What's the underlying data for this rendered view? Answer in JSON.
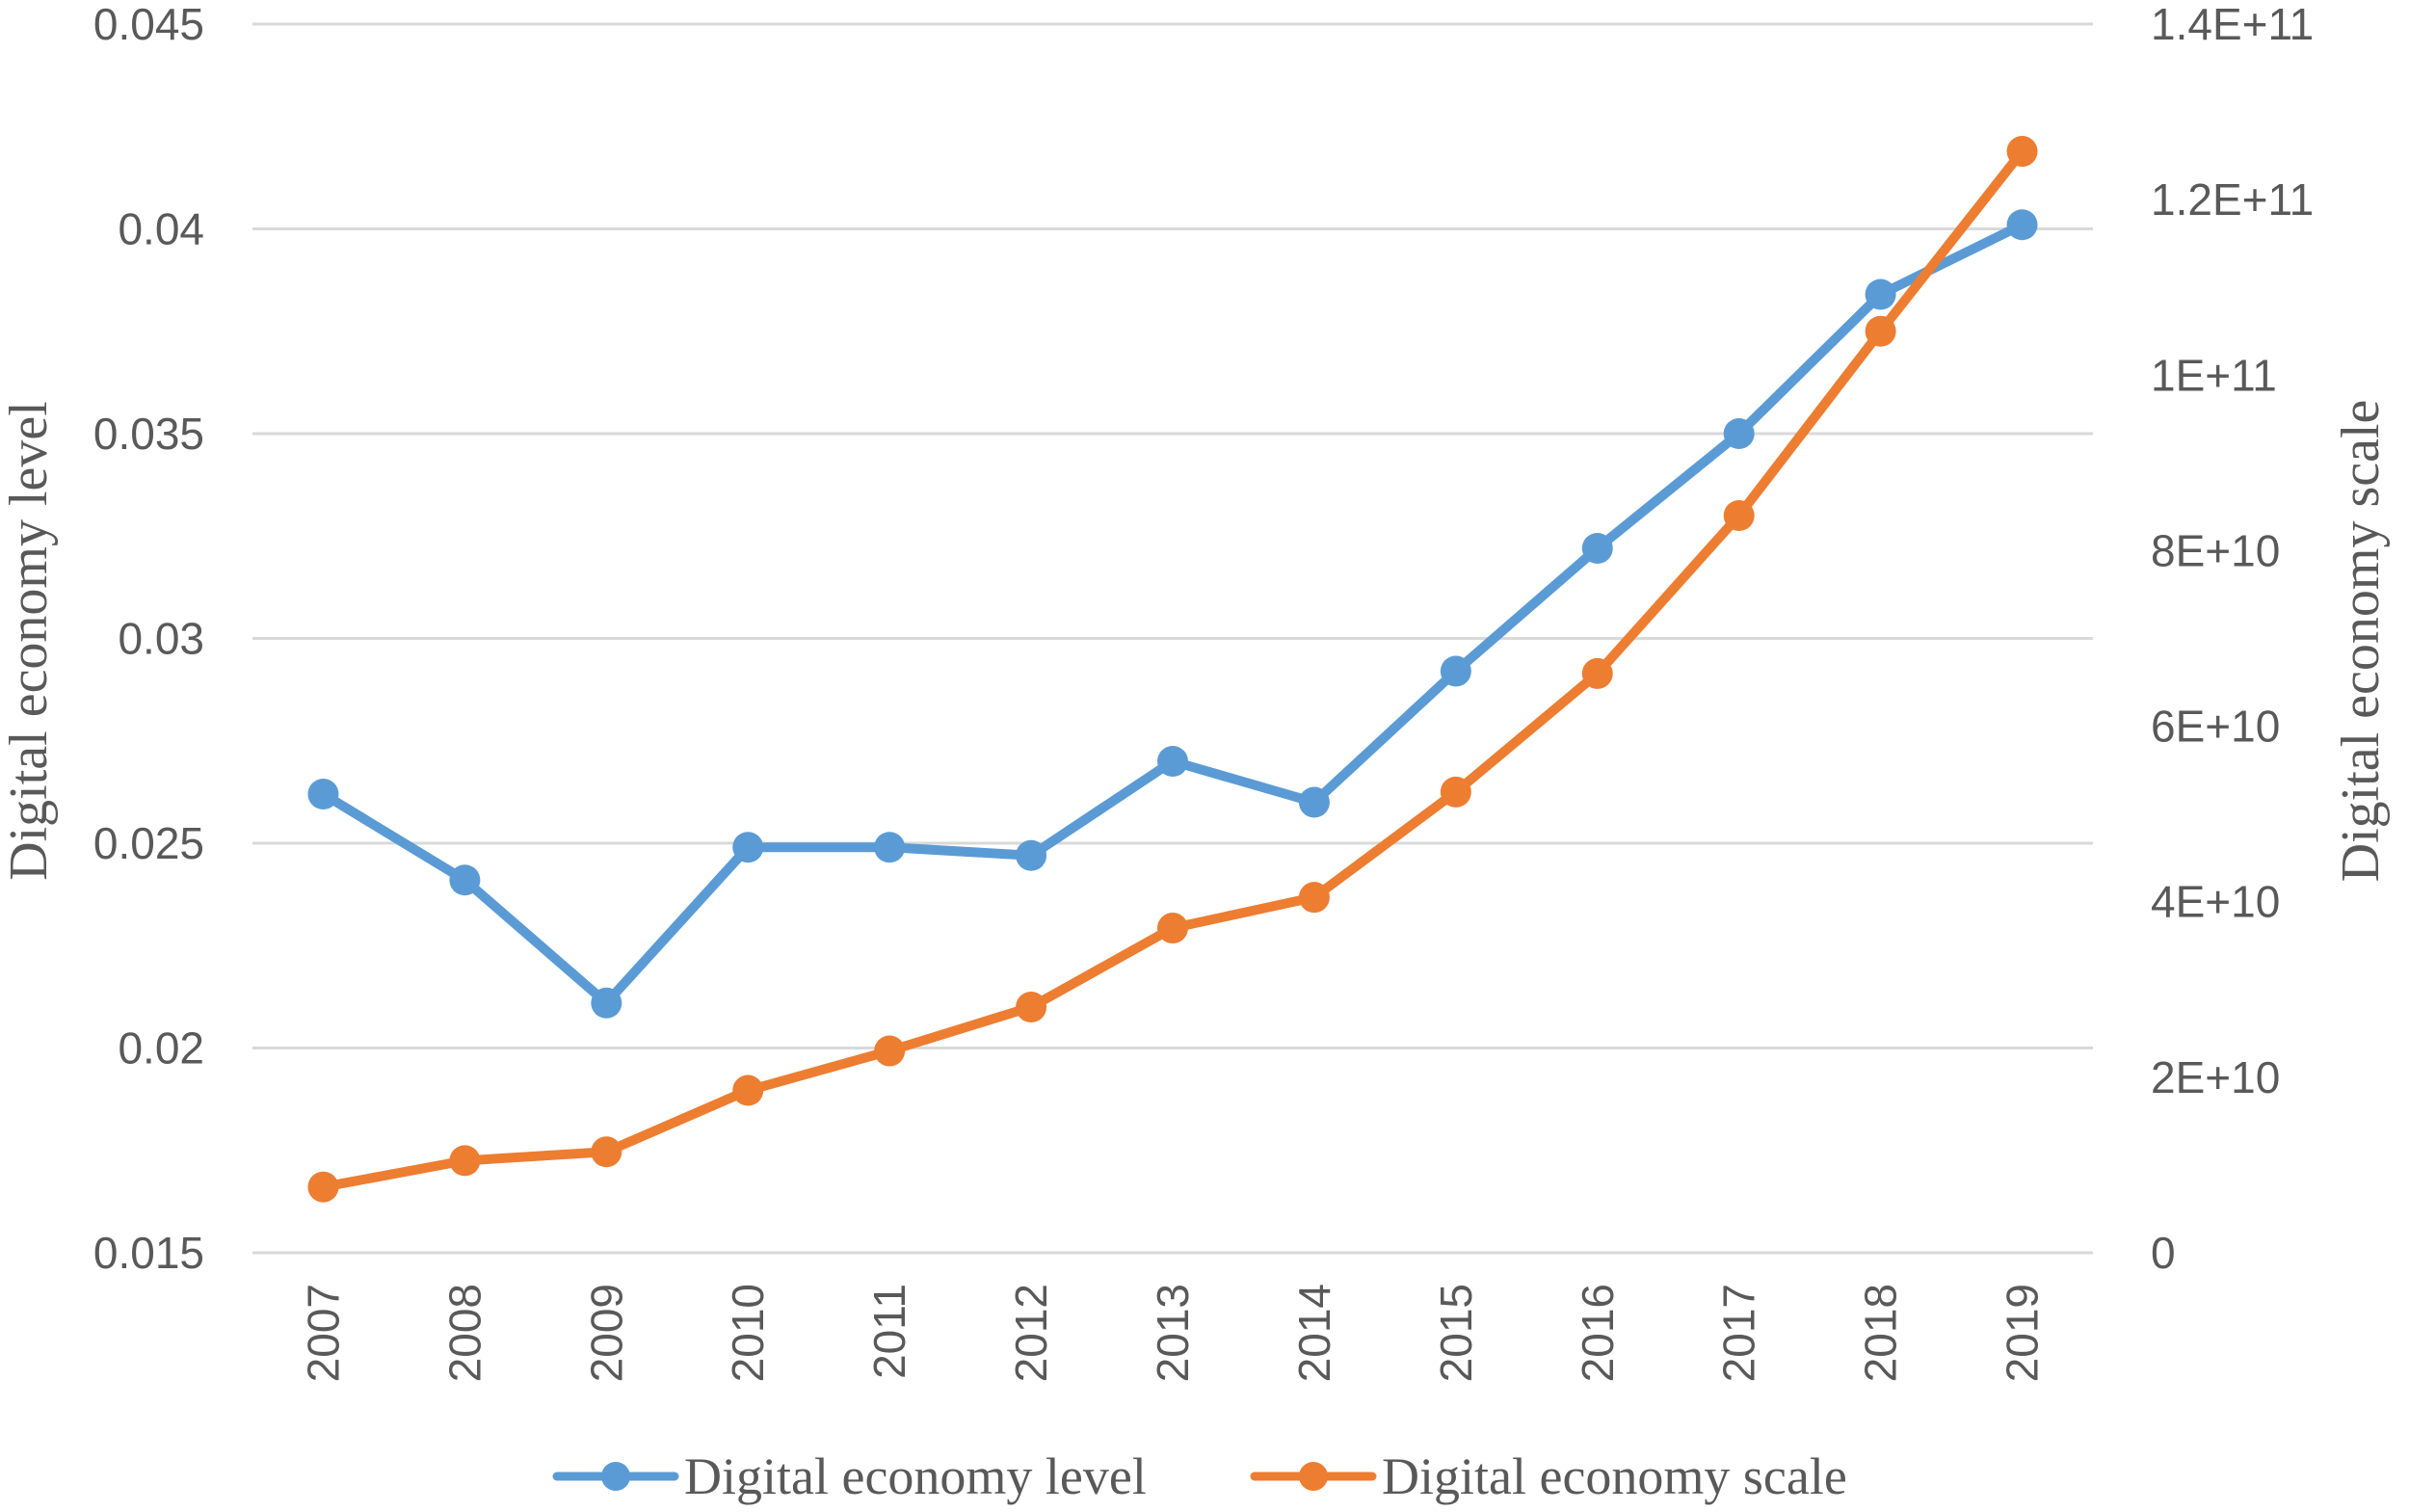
{
  "chart_data": {
    "type": "line",
    "categories": [
      "2007",
      "2008",
      "2009",
      "2010",
      "2011",
      "2012",
      "2013",
      "2014",
      "2015",
      "2016",
      "2017",
      "2018",
      "2019"
    ],
    "series": [
      {
        "name": "Digital economy level",
        "axis": "left",
        "color": "#5b9bd5",
        "values": [
          0.0262,
          0.0241,
          0.0211,
          0.0249,
          0.0249,
          0.0247,
          0.027,
          0.026,
          0.0292,
          0.0322,
          0.035,
          0.0384,
          0.0401
        ]
      },
      {
        "name": "Digital economy scale",
        "axis": "right",
        "color": "#ed7d31",
        "values": [
          7500000000,
          10500000000,
          11500000000,
          18500000000,
          23000000000,
          28000000000,
          37000000000,
          40500000000,
          52500000000,
          66000000000,
          84000000000,
          105000000000,
          125500000000
        ]
      }
    ],
    "y_left": {
      "label": "Digital economy level",
      "ylim": [
        0.015,
        0.045
      ],
      "ticks": [
        "0.015",
        "0.02",
        "0.025",
        "0.03",
        "0.035",
        "0.04",
        "0.045"
      ]
    },
    "y_right": {
      "label": "Digital economy scale",
      "ylim": [
        0,
        140000000000
      ],
      "ticks": [
        "0",
        "2E+10",
        "4E+10",
        "6E+10",
        "8E+10",
        "1E+11",
        "1.2E+11",
        "1.4E+11"
      ]
    },
    "grid": true,
    "legend_position": "bottom-center"
  }
}
